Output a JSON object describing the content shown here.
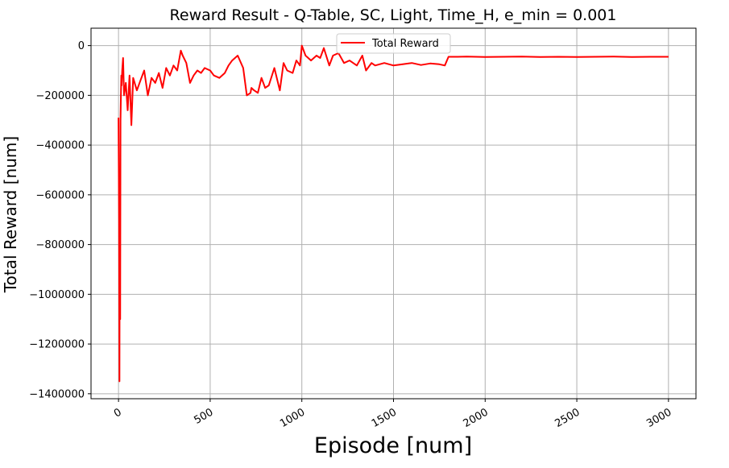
{
  "chart_data": {
    "type": "line",
    "title": "Reward Result - Q-Table, SC, Light, Time_H, e_min = 0.001",
    "xlabel": "Episode [num]",
    "ylabel": "Total Reward [num]",
    "xlim": [
      -150,
      3150
    ],
    "ylim": [
      -1420000,
      70000
    ],
    "xticks": [
      0,
      500,
      1000,
      1500,
      2000,
      2500,
      3000
    ],
    "xtick_labels": [
      "0",
      "500",
      "1000",
      "1500",
      "2000",
      "2500",
      "3000"
    ],
    "yticks": [
      0,
      -200000,
      -400000,
      -600000,
      -800000,
      -1000000,
      -1200000,
      -1400000
    ],
    "ytick_labels": [
      "0",
      "−200000",
      "−400000",
      "−600000",
      "−800000",
      "−1000000",
      "−1200000",
      "−1400000"
    ],
    "grid": true,
    "legend_position": "upper center",
    "series": [
      {
        "name": "Total Reward",
        "color": "#ff0000",
        "x": [
          0,
          3,
          5,
          7,
          9,
          11,
          13,
          15,
          17,
          20,
          25,
          30,
          40,
          50,
          60,
          70,
          80,
          100,
          120,
          140,
          160,
          180,
          200,
          220,
          240,
          260,
          280,
          300,
          320,
          340,
          350,
          370,
          390,
          410,
          430,
          450,
          470,
          500,
          520,
          550,
          580,
          600,
          620,
          650,
          680,
          700,
          720,
          725,
          740,
          760,
          780,
          800,
          820,
          850,
          880,
          900,
          920,
          950,
          970,
          990,
          1000,
          1020,
          1050,
          1080,
          1100,
          1120,
          1150,
          1170,
          1200,
          1230,
          1260,
          1300,
          1330,
          1350,
          1380,
          1400,
          1450,
          1500,
          1550,
          1600,
          1650,
          1700,
          1750,
          1780,
          1800,
          1850,
          1900,
          2000,
          2100,
          2200,
          2300,
          2400,
          2500,
          2600,
          2700,
          2800,
          2900,
          3000
        ],
        "y": [
          -290000,
          -700000,
          -1350000,
          -500000,
          -1100000,
          -300000,
          -200000,
          -120000,
          -160000,
          -100000,
          -50000,
          -200000,
          -150000,
          -260000,
          -120000,
          -320000,
          -130000,
          -180000,
          -140000,
          -100000,
          -200000,
          -130000,
          -150000,
          -110000,
          -170000,
          -90000,
          -120000,
          -80000,
          -100000,
          -20000,
          -40000,
          -70000,
          -150000,
          -120000,
          -100000,
          -110000,
          -90000,
          -100000,
          -120000,
          -130000,
          -110000,
          -80000,
          -60000,
          -40000,
          -90000,
          -200000,
          -190000,
          -170000,
          -180000,
          -190000,
          -130000,
          -170000,
          -160000,
          -90000,
          -180000,
          -70000,
          -100000,
          -110000,
          -60000,
          -80000,
          0,
          -40000,
          -60000,
          -40000,
          -50000,
          -10000,
          -80000,
          -40000,
          -30000,
          -70000,
          -60000,
          -80000,
          -40000,
          -100000,
          -70000,
          -80000,
          -70000,
          -80000,
          -75000,
          -70000,
          -78000,
          -72000,
          -75000,
          -80000,
          -45000,
          -45000,
          -44000,
          -46000,
          -45000,
          -44000,
          -46000,
          -45000,
          -46000,
          -45000,
          -44000,
          -46000,
          -45000,
          -45000
        ]
      }
    ]
  }
}
